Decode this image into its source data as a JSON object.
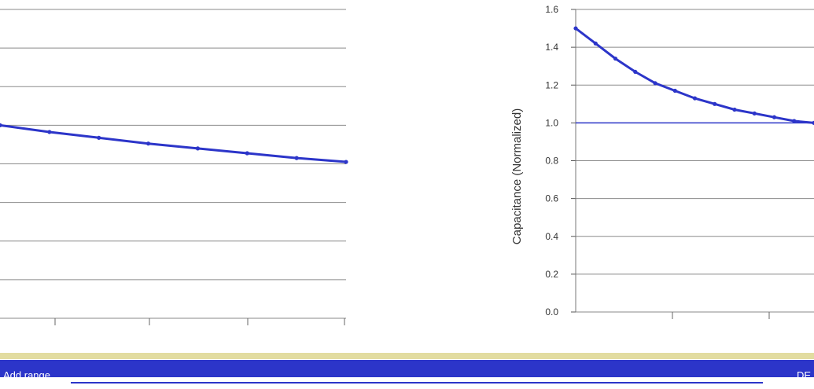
{
  "chart_data": [
    {
      "type": "line",
      "title": "",
      "xlabel": "",
      "ylabel": "",
      "ylim": [
        0.0,
        1.6
      ],
      "y_ticks": [],
      "grid": true,
      "series": [
        {
          "x": [
            0,
            1,
            2,
            3,
            4,
            5,
            6,
            7
          ],
          "values": [
            1.0,
            0.965,
            0.935,
            0.905,
            0.88,
            0.855,
            0.83,
            0.81
          ]
        }
      ],
      "series_color": "#2c35c9"
    },
    {
      "type": "line",
      "title": "",
      "xlabel": "",
      "ylabel": "Capacitance (Normalized)",
      "ylim": [
        0.0,
        1.6
      ],
      "y_ticks": [
        "0.0",
        "0.2",
        "0.4",
        "0.6",
        "0.8",
        "1.0",
        "1.2",
        "1.4",
        "1.6"
      ],
      "grid": true,
      "series": [
        {
          "x": [
            0,
            0.5,
            1,
            1.5,
            2,
            2.5,
            3,
            3.5,
            4,
            4.5,
            5,
            5.5,
            6
          ],
          "values": [
            1.5,
            1.42,
            1.34,
            1.27,
            1.21,
            1.17,
            1.13,
            1.1,
            1.07,
            1.05,
            1.03,
            1.01,
            1.0
          ]
        }
      ],
      "reference_line": 1.0,
      "series_color": "#2c35c9"
    }
  ],
  "status": {
    "left": "Add range",
    "right": "DE"
  }
}
